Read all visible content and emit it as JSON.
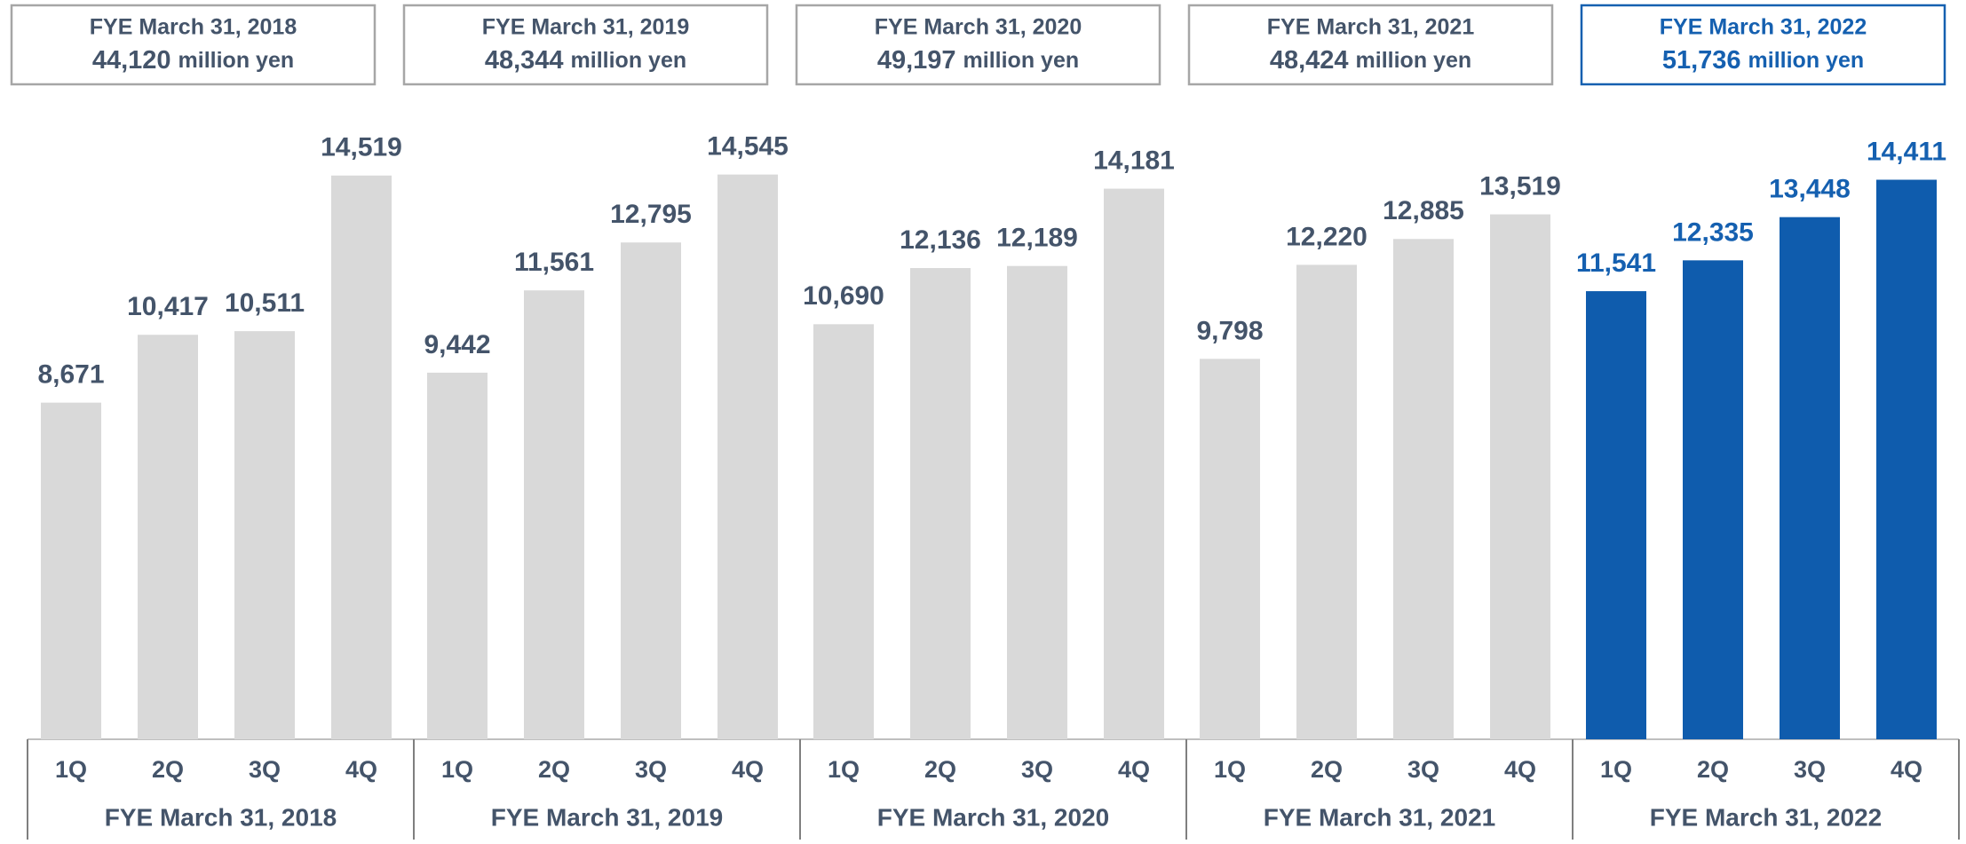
{
  "chart_data": {
    "type": "bar",
    "quarters": [
      "1Q",
      "2Q",
      "3Q",
      "4Q"
    ],
    "unit": "million yen",
    "ylim": [
      0,
      16000
    ],
    "series": [
      {
        "name": "FYE March 31, 2018",
        "color": "#d9d9d9",
        "label_color": "#44546a",
        "box_color": "#a6a6a6",
        "total": 44120,
        "total_label": "44,120",
        "values": [
          8671,
          10417,
          10511,
          14519
        ],
        "value_labels": [
          "8,671",
          "10,417",
          "10,511",
          "14,519"
        ]
      },
      {
        "name": "FYE March 31, 2019",
        "color": "#d9d9d9",
        "label_color": "#44546a",
        "box_color": "#a6a6a6",
        "total": 48344,
        "total_label": "48,344",
        "values": [
          9442,
          11561,
          12795,
          14545
        ],
        "value_labels": [
          "9,442",
          "11,561",
          "12,795",
          "14,545"
        ]
      },
      {
        "name": "FYE March 31, 2020",
        "color": "#d9d9d9",
        "label_color": "#44546a",
        "box_color": "#a6a6a6",
        "total": 49197,
        "total_label": "49,197",
        "values": [
          10690,
          12136,
          12189,
          14181
        ],
        "value_labels": [
          "10,690",
          "12,136",
          "12,189",
          "14,181"
        ]
      },
      {
        "name": "FYE March 31, 2021",
        "color": "#d9d9d9",
        "label_color": "#44546a",
        "box_color": "#a6a6a6",
        "total": 48424,
        "total_label": "48,424",
        "values": [
          9798,
          12220,
          12885,
          13519
        ],
        "value_labels": [
          "9,798",
          "12,220",
          "12,885",
          "13,519"
        ]
      },
      {
        "name": "FYE March 31, 2022",
        "color": "#0f5cad",
        "label_color": "#1560b0",
        "box_color": "#1560b0",
        "total": 51736,
        "total_label": "51,736",
        "values": [
          11541,
          12335,
          13448,
          14411
        ],
        "value_labels": [
          "11,541",
          "12,335",
          "13,448",
          "14,411"
        ]
      }
    ]
  }
}
